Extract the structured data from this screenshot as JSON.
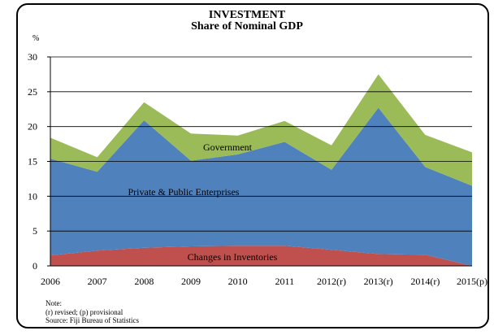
{
  "chart_data": {
    "type": "area",
    "title": "INVESTMENT",
    "subtitle": "Share of Nominal GDP",
    "ylabel": "%",
    "xlabel": "",
    "ylim": [
      0,
      30
    ],
    "yticks": [
      0,
      5,
      10,
      15,
      20,
      25,
      30
    ],
    "categories": [
      "2006",
      "2007",
      "2008",
      "2009",
      "2010",
      "2011",
      "2012(r)",
      "2013(r)",
      "2014(r)",
      "2015(p)"
    ],
    "stacked": true,
    "grid": "horizontal",
    "series": [
      {
        "name": "Changes in Inventories",
        "color": "#c0504d",
        "values": [
          1.5,
          2.2,
          2.6,
          2.8,
          2.9,
          2.9,
          2.3,
          1.7,
          1.6,
          0.0
        ]
      },
      {
        "name": "Private & Public Enterprises",
        "color": "#4f81bd",
        "values": [
          13.9,
          11.3,
          18.3,
          12.3,
          13.1,
          14.9,
          11.5,
          21.0,
          12.6,
          11.5
        ]
      },
      {
        "name": "Government",
        "color": "#9bbb59",
        "values": [
          3.0,
          2.1,
          2.6,
          3.9,
          2.7,
          3.0,
          3.5,
          4.8,
          4.6,
          4.8
        ]
      }
    ]
  },
  "notes": {
    "heading": "Note:",
    "line1": "(r) revised; (p) provisional",
    "source": "Source:  Fiji Bureau of Statistics"
  }
}
